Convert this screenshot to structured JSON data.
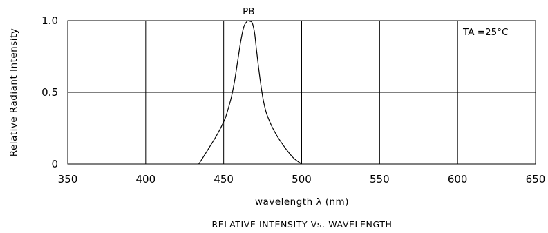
{
  "chart_data": {
    "type": "line",
    "title": "",
    "caption": "RELATIVE INTENSITY Vs. WAVELENGTH",
    "xlabel": "wavelength λ (nm)",
    "ylabel": "Relative Radiant Intensity",
    "xlim": [
      350,
      650
    ],
    "ylim": [
      0,
      1.0
    ],
    "x_ticks": [
      350,
      400,
      450,
      500,
      550,
      600,
      650
    ],
    "x_tick_labels": [
      "350",
      "400",
      "450",
      "500",
      "550",
      "600",
      "650"
    ],
    "y_ticks": [
      0,
      0.5,
      1.0
    ],
    "y_tick_labels": [
      "0",
      "0.5",
      "1.0"
    ],
    "grid": true,
    "annotation": "TA =25°C",
    "series": [
      {
        "name": "PB",
        "color": "#000000",
        "x": [
          434,
          437,
          441,
          445,
          448,
          451,
          453,
          455,
          457,
          459,
          461,
          463,
          465,
          466,
          467,
          468,
          469,
          470,
          471,
          473,
          475,
          477,
          479,
          481,
          484,
          487,
          491,
          495,
          500
        ],
        "y": [
          0.0,
          0.05,
          0.12,
          0.19,
          0.25,
          0.32,
          0.39,
          0.47,
          0.58,
          0.72,
          0.86,
          0.96,
          0.995,
          1.0,
          0.995,
          0.99,
          0.96,
          0.9,
          0.8,
          0.62,
          0.47,
          0.37,
          0.31,
          0.26,
          0.2,
          0.15,
          0.09,
          0.04,
          0.0
        ]
      }
    ]
  }
}
